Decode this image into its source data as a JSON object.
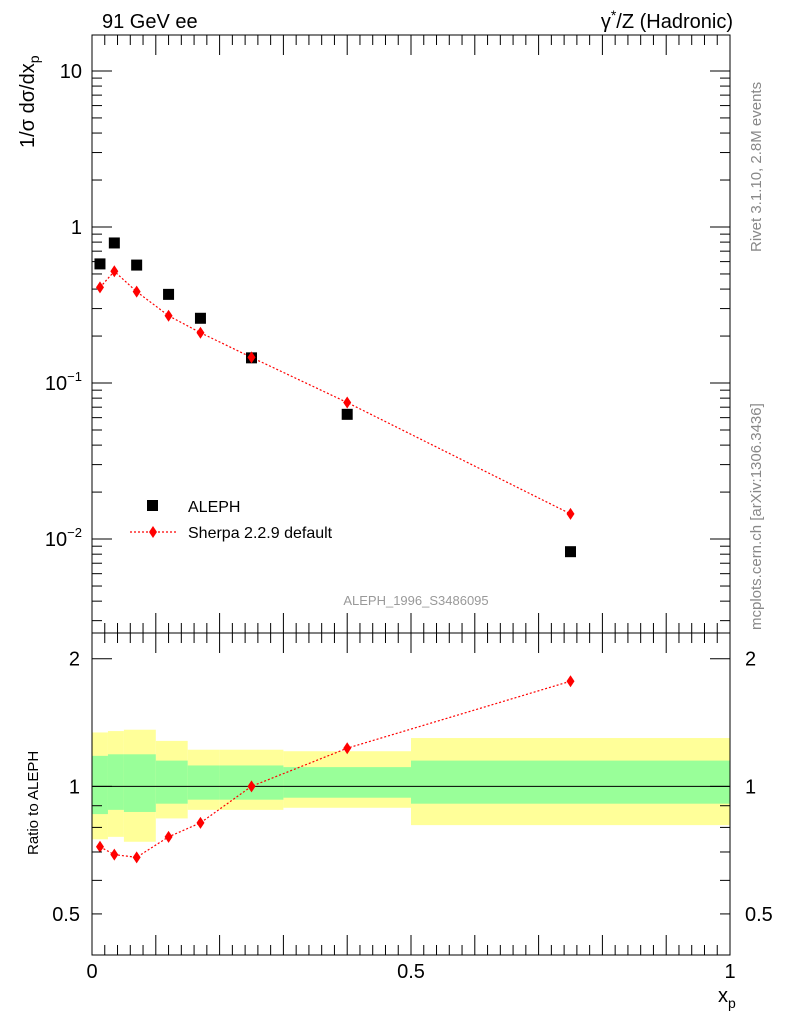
{
  "header": {
    "left": "91 GeV ee",
    "right_sup_prefix": "γ",
    "right_sup": "*",
    "right_rest": "/Z (Hadronic)"
  },
  "side_labels": {
    "rivet": "Rivet 3.1.10,  2.8M events",
    "mcplots": "mcplots.cern.ch [arXiv:1306.3436]"
  },
  "analysis_label": "ALEPH_1996_S3486095",
  "main": {
    "ylabel_main": "1/σ dσ/dx",
    "ylabel_sub": "p",
    "ytick_labels": [
      {
        "value": 10,
        "base": "10",
        "exp": ""
      },
      {
        "value": 1,
        "base": "1",
        "exp": ""
      },
      {
        "value": 0.1,
        "base": "10",
        "exp": "−1"
      },
      {
        "value": 0.01,
        "base": "10",
        "exp": "−2"
      }
    ]
  },
  "legend": {
    "entries": [
      {
        "label": "ALEPH",
        "color": "#000000",
        "marker": "square"
      },
      {
        "label": "Sherpa 2.2.9 default",
        "color": "#ff0000",
        "marker": "diamond"
      }
    ]
  },
  "ratio": {
    "ylabel": "Ratio to ALEPH",
    "ytick_labels": [
      {
        "value": 2,
        "label": "2"
      },
      {
        "value": 1,
        "label": "1"
      },
      {
        "value": 0.5,
        "label": "0.5"
      }
    ]
  },
  "xaxis": {
    "label_main": "x",
    "label_sub": "p",
    "tick_labels": [
      {
        "value": 0,
        "label": "0"
      },
      {
        "value": 0.5,
        "label": "0.5"
      },
      {
        "value": 1,
        "label": "1"
      }
    ]
  },
  "chart_data": {
    "type": "scatter",
    "xlim": [
      0,
      1
    ],
    "main_ylim": [
      0.0025,
      17
    ],
    "main_yscale": "log",
    "ratio_ylim": [
      0.4,
      2.3
    ],
    "ratio_yscale": "log",
    "grid": false,
    "legend_position": "bottom-left",
    "x": [
      0.0125,
      0.035,
      0.07,
      0.12,
      0.17,
      0.25,
      0.4,
      0.75
    ],
    "series": [
      {
        "name": "ALEPH",
        "color": "#000000",
        "marker": "square",
        "values": [
          0.58,
          0.79,
          0.57,
          0.37,
          0.26,
          0.145,
          0.063,
          0.0083
        ]
      },
      {
        "name": "Sherpa 2.2.9 default",
        "color": "#ff0000",
        "marker": "diamond",
        "line": "dotted",
        "values": [
          0.41,
          0.52,
          0.385,
          0.27,
          0.21,
          0.146,
          0.075,
          0.0145
        ]
      }
    ],
    "ratio_series": [
      {
        "name": "Sherpa 2.2.9 default",
        "color": "#ff0000",
        "values": [
          0.72,
          0.69,
          0.68,
          0.76,
          0.82,
          1.0,
          1.23,
          1.77
        ]
      }
    ],
    "uncertainty_bands": {
      "bins": [
        [
          0.0,
          0.025
        ],
        [
          0.025,
          0.05
        ],
        [
          0.05,
          0.1
        ],
        [
          0.1,
          0.15
        ],
        [
          0.15,
          0.2
        ],
        [
          0.2,
          0.3
        ],
        [
          0.3,
          0.5
        ],
        [
          0.5,
          1.0
        ]
      ],
      "inner": {
        "color": "#99ff99",
        "low": [
          0.86,
          0.88,
          0.87,
          0.91,
          0.93,
          0.93,
          0.94,
          0.91
        ],
        "high": [
          1.18,
          1.19,
          1.19,
          1.15,
          1.12,
          1.12,
          1.11,
          1.15
        ]
      },
      "outer": {
        "color": "#ffff99",
        "low": [
          0.75,
          0.76,
          0.74,
          0.84,
          0.88,
          0.88,
          0.89,
          0.81
        ],
        "high": [
          1.34,
          1.35,
          1.36,
          1.28,
          1.22,
          1.22,
          1.21,
          1.3
        ]
      }
    },
    "reference_line": 1.0
  }
}
